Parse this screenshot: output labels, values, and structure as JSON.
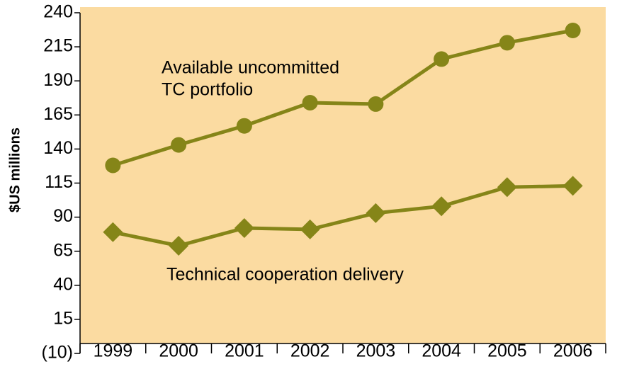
{
  "chart_data": {
    "type": "line",
    "ylabel": "$US millions",
    "categories": [
      "1999",
      "2000",
      "2001",
      "2002",
      "2003",
      "2004",
      "2005",
      "2006"
    ],
    "series": [
      {
        "color": "#858518",
        "marker": "circle",
        "values": [
          128,
          143,
          157,
          174,
          173,
          206,
          218,
          227
        ]
      },
      {
        "color": "#858518",
        "marker": "diamond",
        "values": [
          79,
          69,
          82,
          81,
          93,
          98,
          112,
          113
        ]
      }
    ],
    "annotations": [
      "Available uncommitted",
      "TC portfolio",
      "Technical cooperation delivery"
    ],
    "ylim": [
      -10,
      240
    ],
    "yticks": [
      {
        "value": -10,
        "label": "(10)"
      },
      15,
      40,
      65,
      90,
      115,
      140,
      165,
      190,
      215,
      240
    ],
    "background": "#fbdba1"
  }
}
